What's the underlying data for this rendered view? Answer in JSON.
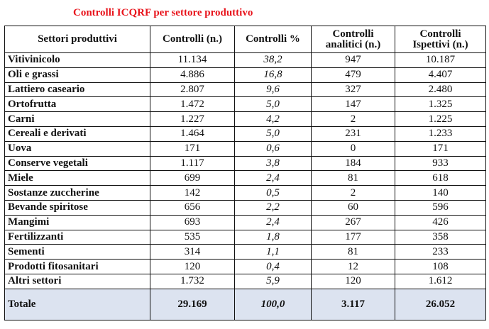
{
  "title": "Controlli ICQRF per settore produttivo",
  "colors": {
    "title": "#e8141c",
    "total_row_bg": "#dce3f0"
  },
  "headers": [
    "Settori produttivi",
    "Controlli (n.)",
    "Controlli %",
    "Controlli analitici (n.)",
    "Controlli Ispettivi (n.)"
  ],
  "rows": [
    [
      "Vitivinicolo",
      "11.134",
      "38,2",
      "947",
      "10.187"
    ],
    [
      "Oli e grassi",
      "4.886",
      "16,8",
      "479",
      "4.407"
    ],
    [
      "Lattiero caseario",
      "2.807",
      "9,6",
      "327",
      "2.480"
    ],
    [
      "Ortofrutta",
      "1.472",
      "5,0",
      "147",
      "1.325"
    ],
    [
      "Carni",
      "1.227",
      "4,2",
      "2",
      "1.225"
    ],
    [
      "Cereali e derivati",
      "1.464",
      "5,0",
      "231",
      "1.233"
    ],
    [
      "Uova",
      "171",
      "0,6",
      "0",
      "171"
    ],
    [
      "Conserve vegetali",
      "1.117",
      "3,8",
      "184",
      "933"
    ],
    [
      "Miele",
      "699",
      "2,4",
      "81",
      "618"
    ],
    [
      "Sostanze zuccherine",
      "142",
      "0,5",
      "2",
      "140"
    ],
    [
      "Bevande spiritose",
      "656",
      "2,2",
      "60",
      "596"
    ],
    [
      "Mangimi",
      "693",
      "2,4",
      "267",
      "426"
    ],
    [
      "Fertilizzanti",
      "535",
      "1,8",
      "177",
      "358"
    ],
    [
      "Sementi",
      "314",
      "1,1",
      "81",
      "233"
    ],
    [
      "Prodotti fitosanitari",
      "120",
      "0,4",
      "12",
      "108"
    ],
    [
      "Altri settori",
      "1.732",
      "5,9",
      "120",
      "1.612"
    ]
  ],
  "total": [
    "Totale",
    "29.169",
    "100,0",
    "3.117",
    "26.052"
  ]
}
